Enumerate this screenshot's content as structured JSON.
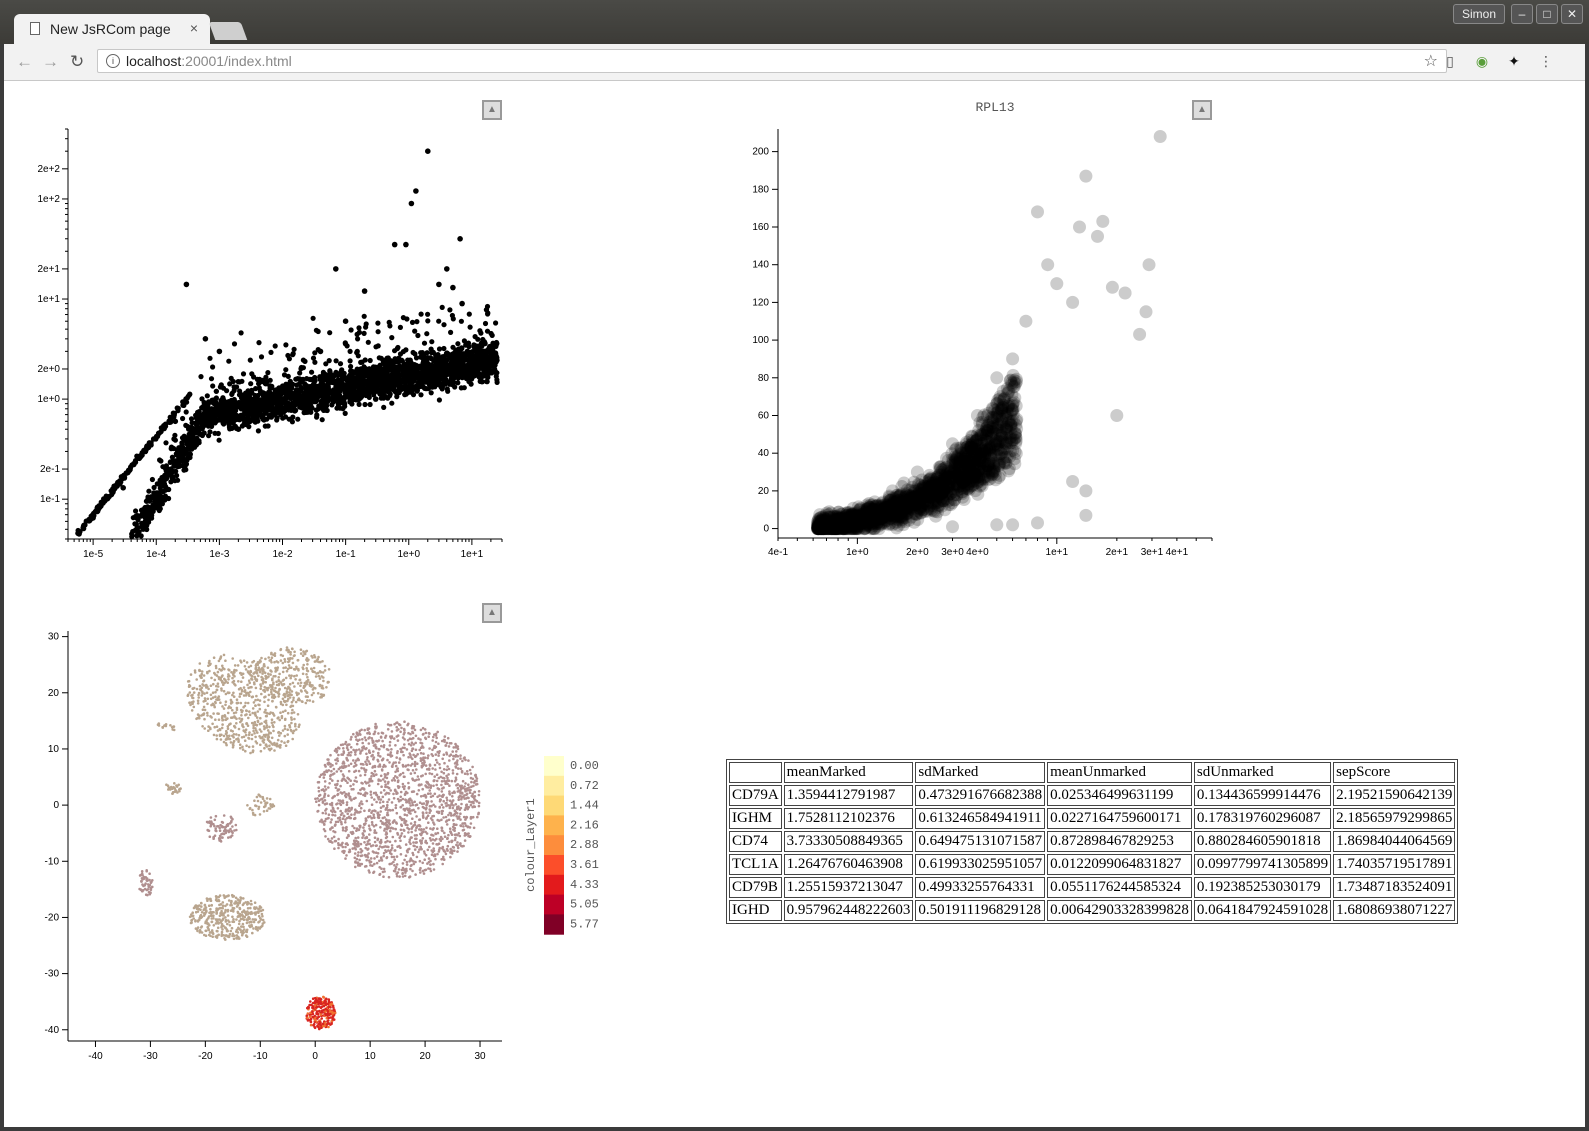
{
  "browser": {
    "tab_title": "New JsRCom page",
    "url_host": "localhost",
    "url_rest": ":20001/index.html",
    "user": "Simon",
    "tab_close_glyph": "×",
    "back_glyph": "←",
    "forward_glyph": "→",
    "reload_glyph": "↻",
    "star_glyph": "☆",
    "minimize_glyph": "–",
    "maximize_glyph": "□",
    "close_glyph": "✕",
    "menu_glyph": "⋮"
  },
  "collapse_glyph": "▲",
  "chart_data": [
    {
      "type": "scatter",
      "title": "",
      "xscale": "log",
      "yscale": "log",
      "x_tick_labels": [
        "1e-5",
        "1e-4",
        "1e-3",
        "1e-2",
        "1e-1",
        "1e+0",
        "1e+1"
      ],
      "y_tick_labels": [
        "1e-1",
        "2e-1",
        "1e+0",
        "2e+0",
        "1e+1",
        "2e+1",
        "1e+2",
        "2e+2"
      ],
      "xlim": [
        4e-06,
        30
      ],
      "ylim": [
        0.04,
        500
      ],
      "point_color": "#000000",
      "points": [
        {
          "x": 6e-06,
          "y": 0.045
        },
        {
          "x": 1e-05,
          "y": 0.065
        },
        {
          "x": 3e-05,
          "y": 0.13
        },
        {
          "x": 0.0002,
          "y": 0.6
        },
        {
          "x": 0.002,
          "y": 0.5
        },
        {
          "x": 0.0006,
          "y": 4
        },
        {
          "x": 0.001,
          "y": 3
        },
        {
          "x": 0.04,
          "y": 3
        },
        {
          "x": 0.1,
          "y": 6
        },
        {
          "x": 0.2,
          "y": 12
        },
        {
          "x": 0.07,
          "y": 20
        },
        {
          "x": 0.0003,
          "y": 14
        },
        {
          "x": 0.6,
          "y": 35
        },
        {
          "x": 0.9,
          "y": 35
        },
        {
          "x": 1.1,
          "y": 90
        },
        {
          "x": 1.3,
          "y": 120
        },
        {
          "x": 2.0,
          "y": 300
        },
        {
          "x": 3.0,
          "y": 14
        },
        {
          "x": 4.0,
          "y": 20
        },
        {
          "x": 5.0,
          "y": 13
        },
        {
          "x": 6.5,
          "y": 40
        },
        {
          "x": 7.0,
          "y": 9
        },
        {
          "x": 8.5,
          "y": 3
        },
        {
          "x": 12,
          "y": 3
        },
        {
          "x": 15,
          "y": 2.6
        },
        {
          "x": 10,
          "y": 2
        },
        {
          "x": 3,
          "y": 1.5
        },
        {
          "x": 1,
          "y": 1.2
        },
        {
          "x": 0.3,
          "y": 1.0
        },
        {
          "x": 0.01,
          "y": 0.8
        }
      ]
    },
    {
      "type": "scatter",
      "title": "RPL13",
      "xscale": "log",
      "x_tick_labels": [
        "4e-1",
        "1e+0",
        "2e+0",
        "3e+0",
        "4e+0",
        "1e+1",
        "2e+1",
        "3e+1",
        "4e+1"
      ],
      "x_ticks": [
        0.4,
        1,
        2,
        3,
        4,
        10,
        20,
        30,
        40
      ],
      "y_ticks": [
        0,
        20,
        40,
        60,
        80,
        100,
        120,
        140,
        160,
        180,
        200
      ],
      "xlim": [
        0.4,
        60
      ],
      "ylim": [
        -5,
        212
      ],
      "point_color": "#000000",
      "point_opacity": 0.2,
      "points": [
        {
          "x": 0.7,
          "y": 5
        },
        {
          "x": 1.0,
          "y": 8
        },
        {
          "x": 1.5,
          "y": 20
        },
        {
          "x": 2.0,
          "y": 30
        },
        {
          "x": 3.0,
          "y": 45
        },
        {
          "x": 4.0,
          "y": 60
        },
        {
          "x": 5.0,
          "y": 80
        },
        {
          "x": 6.0,
          "y": 90
        },
        {
          "x": 7.0,
          "y": 110
        },
        {
          "x": 8.0,
          "y": 168
        },
        {
          "x": 9.0,
          "y": 140
        },
        {
          "x": 10,
          "y": 130
        },
        {
          "x": 12,
          "y": 120
        },
        {
          "x": 13,
          "y": 160
        },
        {
          "x": 14,
          "y": 187
        },
        {
          "x": 16,
          "y": 155
        },
        {
          "x": 17,
          "y": 163
        },
        {
          "x": 19,
          "y": 128
        },
        {
          "x": 20,
          "y": 60
        },
        {
          "x": 22,
          "y": 125
        },
        {
          "x": 26,
          "y": 103
        },
        {
          "x": 29,
          "y": 140
        },
        {
          "x": 28,
          "y": 115
        },
        {
          "x": 33,
          "y": 208
        },
        {
          "x": 12,
          "y": 25
        },
        {
          "x": 14,
          "y": 20
        },
        {
          "x": 14,
          "y": 7
        },
        {
          "x": 8,
          "y": 3
        },
        {
          "x": 6,
          "y": 2
        },
        {
          "x": 5,
          "y": 2
        },
        {
          "x": 3,
          "y": 1
        },
        {
          "x": 1.2,
          "y": 3
        }
      ]
    },
    {
      "type": "scatter",
      "title": "",
      "x_ticks": [
        -40,
        -30,
        -20,
        -10,
        0,
        10,
        20,
        30
      ],
      "y_ticks": [
        -40,
        -30,
        -20,
        -10,
        0,
        10,
        20,
        30
      ],
      "xlim": [
        -45,
        34
      ],
      "ylim": [
        -42,
        31
      ],
      "legend_title": "colour_Layer1",
      "legend_values": [
        "0.00",
        "0.72",
        "1.44",
        "2.16",
        "2.88",
        "3.61",
        "4.33",
        "5.05",
        "5.77"
      ],
      "legend_colors": [
        "#ffffcc",
        "#ffeda0",
        "#fed976",
        "#feb24c",
        "#fd8d3c",
        "#fc4e2a",
        "#e31a1c",
        "#bd0026",
        "#800026"
      ],
      "point_colors": {
        "low": "#b9a58e",
        "mid": "#b08f8f",
        "high": "#d92420"
      },
      "clusters": [
        {
          "cx": -13,
          "cy": 18,
          "rx": 11,
          "ry": 8,
          "rot": -30,
          "n": 650,
          "color": "low"
        },
        {
          "cx": -4,
          "cy": 23,
          "rx": 7,
          "ry": 5,
          "rot": -10,
          "n": 260,
          "color": "low"
        },
        {
          "cx": 15,
          "cy": 1,
          "rx": 15,
          "ry": 14,
          "rot": 0,
          "n": 1700,
          "color": "mid"
        },
        {
          "cx": -16,
          "cy": -20,
          "rx": 7,
          "ry": 4,
          "rot": 0,
          "n": 380,
          "color": "low"
        },
        {
          "cx": -17,
          "cy": -4,
          "rx": 3,
          "ry": 2.5,
          "rot": 0,
          "n": 80,
          "color": "mid"
        },
        {
          "cx": -10,
          "cy": 0,
          "rx": 2.5,
          "ry": 2,
          "rot": 0,
          "n": 40,
          "color": "low"
        },
        {
          "cx": -31,
          "cy": -14,
          "rx": 1.4,
          "ry": 2.5,
          "rot": 0,
          "n": 50,
          "color": "mid"
        },
        {
          "cx": 1,
          "cy": -37,
          "rx": 2.7,
          "ry": 3,
          "rot": 0,
          "n": 220,
          "color": "high"
        },
        {
          "cx": -26,
          "cy": 3,
          "rx": 1.5,
          "ry": 1,
          "rot": 0,
          "n": 25,
          "color": "low"
        },
        {
          "cx": -27,
          "cy": 14,
          "rx": 1.8,
          "ry": 0.6,
          "rot": -20,
          "n": 15,
          "color": "low"
        }
      ]
    }
  ],
  "table": {
    "headers": [
      "",
      "meanMarked",
      "sdMarked",
      "meanUnmarked",
      "sdUnmarked",
      "sepScore"
    ],
    "rows": [
      [
        "CD79A",
        "1.3594412791987",
        "0.473291676682388",
        "0.025346499631199",
        "0.134436599914476",
        "2.19521590642139"
      ],
      [
        "IGHM",
        "1.7528112102376",
        "0.613246584941911",
        "0.0227164759600171",
        "0.178319760296087",
        "2.18565979299865"
      ],
      [
        "CD74",
        "3.73330508849365",
        "0.649475131071587",
        "0.872898467829253",
        "0.880284605901818",
        "1.86984044064569"
      ],
      [
        "TCL1A",
        "1.26476760463908",
        "0.619933025951057",
        "0.0122099064831827",
        "0.0997799741305899",
        "1.74035719517891"
      ],
      [
        "CD79B",
        "1.25515937213047",
        "0.49933255764331",
        "0.0551176244585324",
        "0.192385253030179",
        "1.73487183524091"
      ],
      [
        "IGHD",
        "0.957962448222603",
        "0.501911196829128",
        "0.00642903328399828",
        "0.0641847924591028",
        "1.68086938071227"
      ]
    ]
  }
}
